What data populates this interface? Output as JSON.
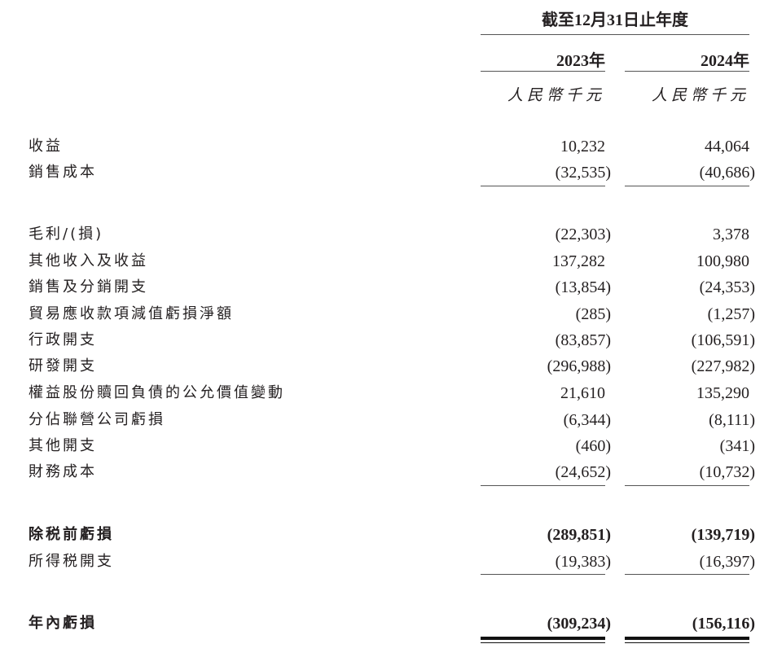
{
  "header": {
    "period": "截至12月31日止年度",
    "years": [
      "2023年",
      "2024年"
    ],
    "unit": "人民幣千元"
  },
  "rows": [
    {
      "label": "收益",
      "v2023": "10,232",
      "v2024": "44,064"
    },
    {
      "label": "銷售成本",
      "v2023": "(32,535)",
      "v2024": "(40,686)"
    },
    {
      "label": "毛利/(損)",
      "v2023": "(22,303)",
      "v2024": "3,378"
    },
    {
      "label": "其他收入及收益",
      "v2023": "137,282",
      "v2024": "100,980"
    },
    {
      "label": "銷售及分銷開支",
      "v2023": "(13,854)",
      "v2024": "(24,353)"
    },
    {
      "label": "貿易應收款項減值虧損淨額",
      "v2023": "(285)",
      "v2024": "(1,257)"
    },
    {
      "label": "行政開支",
      "v2023": "(83,857)",
      "v2024": "(106,591)"
    },
    {
      "label": "研發開支",
      "v2023": "(296,988)",
      "v2024": "(227,982)"
    },
    {
      "label": "權益股份贖回負債的公允價值變動",
      "v2023": "21,610",
      "v2024": "135,290"
    },
    {
      "label": "分佔聯營公司虧損",
      "v2023": "(6,344)",
      "v2024": "(8,111)"
    },
    {
      "label": "其他開支",
      "v2023": "(460)",
      "v2024": "(341)"
    },
    {
      "label": "財務成本",
      "v2023": "(24,652)",
      "v2024": "(10,732)"
    },
    {
      "label": "除税前虧損",
      "v2023": "(289,851)",
      "v2024": "(139,719)",
      "bold": true
    },
    {
      "label": "所得税開支",
      "v2023": "(19,383)",
      "v2024": "(16,397)"
    },
    {
      "label": "年內虧損",
      "v2023": "(309,234)",
      "v2024": "(156,116)",
      "bold": true
    }
  ]
}
